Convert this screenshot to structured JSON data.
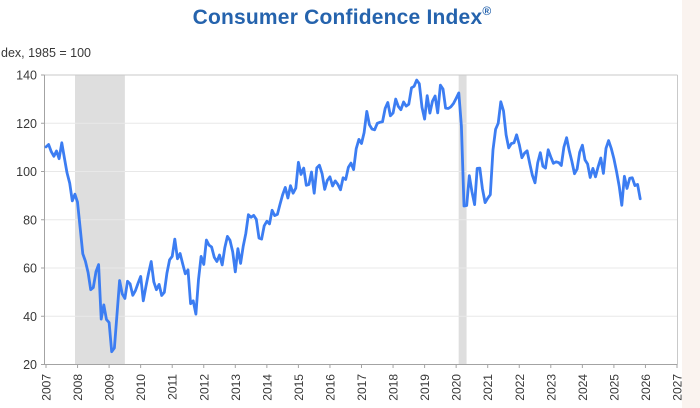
{
  "header": {
    "title_main": "Consumer Confidence Index",
    "title_mark": "®",
    "subtitle": "dex, 1985 = 100"
  },
  "chart_data": {
    "type": "line",
    "title": "Consumer Confidence Index®",
    "ylabel_note": "dex, 1985 = 100",
    "xlabel": "",
    "ylim": [
      20,
      140
    ],
    "y_ticks": [
      20,
      40,
      60,
      80,
      100,
      120,
      140
    ],
    "x_range_years": [
      2007,
      2027
    ],
    "x_tick_years": [
      2007,
      2008,
      2009,
      2010,
      2011,
      2012,
      2013,
      2014,
      2015,
      2016,
      2017,
      2018,
      2019,
      2020,
      2021,
      2022,
      2023,
      2024,
      2025,
      2026,
      2027
    ],
    "grid": true,
    "legend": "none",
    "recession_shading": [
      {
        "start_year": 2007.92,
        "end_year": 2009.5
      },
      {
        "start_year": 2020.08,
        "end_year": 2020.33
      }
    ],
    "series": [
      {
        "name": "Consumer Confidence Index",
        "frequency": "monthly",
        "start": "2007-01",
        "end": "2025-11",
        "values": [
          110.2,
          111.2,
          108.2,
          106.3,
          108.5,
          105.3,
          111.9,
          105.6,
          99.5,
          95.2,
          87.8,
          90.6,
          87.3,
          76.4,
          65.9,
          62.8,
          58.1,
          51.0,
          51.9,
          58.5,
          61.4,
          38.8,
          44.7,
          38.6,
          37.4,
          25.3,
          26.9,
          40.8,
          54.8,
          49.3,
          47.4,
          54.5,
          53.4,
          48.7,
          50.6,
          53.6,
          56.5,
          46.4,
          52.3,
          57.7,
          62.7,
          54.3,
          51.0,
          53.2,
          48.6,
          49.9,
          57.8,
          63.4,
          64.8,
          72.0,
          63.8,
          66.0,
          61.7,
          57.6,
          59.2,
          45.2,
          46.4,
          40.9,
          55.2,
          64.8,
          61.5,
          71.6,
          69.5,
          68.7,
          64.4,
          62.7,
          65.4,
          61.3,
          68.4,
          73.1,
          71.5,
          66.7,
          58.4,
          68.0,
          61.9,
          69.0,
          74.3,
          82.1,
          81.0,
          81.8,
          80.2,
          72.4,
          72.0,
          77.5,
          79.4,
          78.3,
          83.9,
          81.7,
          82.2,
          86.4,
          90.3,
          93.4,
          89.0,
          94.1,
          91.0,
          93.1,
          103.8,
          98.8,
          101.4,
          94.3,
          94.6,
          99.8,
          91.0,
          101.5,
          102.6,
          99.1,
          92.6,
          96.3,
          97.8,
          94.0,
          96.1,
          94.7,
          92.4,
          97.4,
          96.7,
          101.8,
          103.5,
          100.8,
          109.4,
          113.3,
          111.6,
          116.1,
          124.9,
          119.4,
          117.6,
          117.3,
          120.0,
          120.4,
          120.6,
          126.2,
          128.6,
          123.1,
          124.3,
          130.0,
          127.0,
          125.6,
          128.8,
          127.1,
          127.9,
          134.7,
          135.3,
          137.9,
          136.4,
          126.6,
          121.7,
          131.4,
          124.2,
          129.2,
          131.3,
          124.3,
          135.8,
          134.2,
          126.3,
          126.1,
          126.8,
          128.2,
          130.4,
          132.6,
          118.8,
          85.7,
          85.9,
          98.3,
          91.7,
          86.3,
          101.3,
          101.4,
          92.9,
          87.1,
          88.9,
          90.4,
          109.0,
          117.5,
          120.0,
          128.9,
          125.1,
          115.2,
          109.8,
          111.6,
          111.9,
          115.2,
          111.1,
          105.7,
          107.6,
          108.6,
          103.2,
          98.4,
          95.3,
          103.6,
          107.8,
          102.2,
          101.4,
          109.0,
          106.0,
          103.4,
          104.0,
          103.7,
          102.5,
          110.1,
          114.0,
          108.7,
          104.3,
          99.1,
          101.0,
          108.0,
          110.9,
          104.8,
          103.1,
          97.5,
          101.3,
          97.8,
          101.9,
          105.6,
          99.2,
          109.6,
          112.8,
          109.5,
          105.3,
          100.1,
          93.9,
          86.0,
          98.0,
          93.0,
          97.2,
          97.4,
          94.2,
          94.6,
          88.7
        ]
      }
    ],
    "colors": {
      "line": "#3c7df2",
      "title": "#2563ad",
      "recession_band": "#dedede",
      "grid": "#e8e8e8",
      "plot_border": "#c9c9c9",
      "axis": "#a3a3a3",
      "tick_text": "#383838",
      "background": "#ffffff"
    }
  }
}
